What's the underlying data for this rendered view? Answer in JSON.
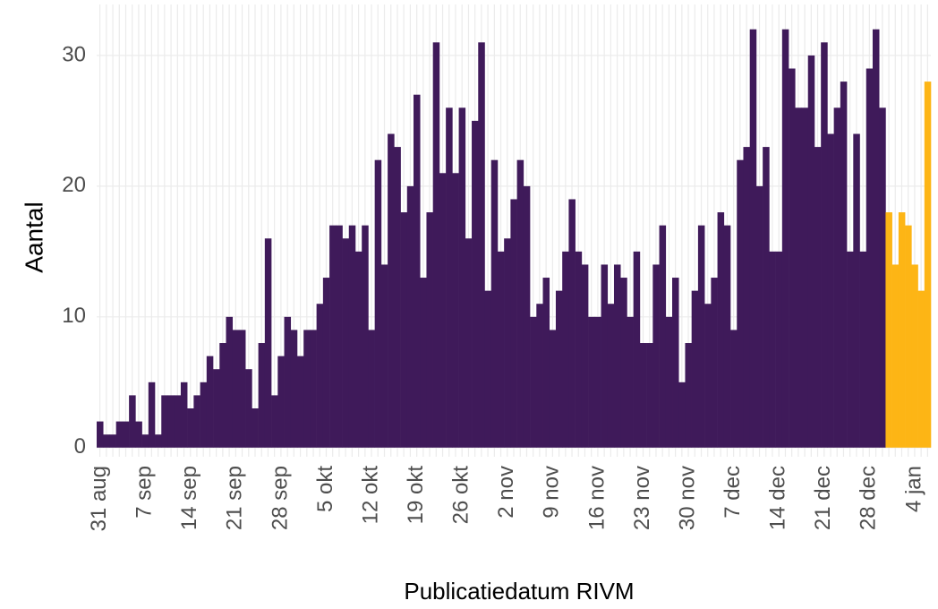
{
  "chart_data": {
    "type": "bar",
    "y_label": "Aantal",
    "x_label": "Publicatiedatum RIVM",
    "categories": [
      "31 aug",
      null,
      null,
      null,
      null,
      null,
      null,
      "7 sep",
      null,
      null,
      null,
      null,
      null,
      null,
      "14 sep",
      null,
      null,
      null,
      null,
      null,
      null,
      "21 sep",
      null,
      null,
      null,
      null,
      null,
      null,
      "28 sep",
      null,
      null,
      null,
      null,
      null,
      null,
      "5 okt",
      null,
      null,
      null,
      null,
      null,
      null,
      "12 okt",
      null,
      null,
      null,
      null,
      null,
      null,
      "19 okt",
      null,
      null,
      null,
      null,
      null,
      null,
      "26 okt",
      null,
      null,
      null,
      null,
      null,
      null,
      "2 nov",
      null,
      null,
      null,
      null,
      null,
      null,
      "9 nov",
      null,
      null,
      null,
      null,
      null,
      null,
      "16 nov",
      null,
      null,
      null,
      null,
      null,
      null,
      "23 nov",
      null,
      null,
      null,
      null,
      null,
      null,
      "30 nov",
      null,
      null,
      null,
      null,
      null,
      null,
      "7 dec",
      null,
      null,
      null,
      null,
      null,
      null,
      "14 dec",
      null,
      null,
      null,
      null,
      null,
      null,
      "21 dec",
      null,
      null,
      null,
      null,
      null,
      null,
      "28 dec",
      null,
      null,
      null,
      null,
      null,
      null,
      "4 jan",
      null,
      null
    ],
    "series": [
      {
        "color": "#3f1a5a",
        "values": [
          2,
          1,
          1,
          2,
          2,
          4,
          2,
          1,
          5,
          1,
          4,
          4,
          4,
          5,
          3,
          4,
          5,
          7,
          6,
          8,
          10,
          9,
          9,
          6,
          3,
          8,
          16,
          4,
          7,
          10,
          9,
          7,
          9,
          9,
          11,
          13,
          17,
          17,
          16,
          17,
          15,
          17,
          9,
          22,
          14,
          24,
          23,
          18,
          20,
          27,
          13,
          18,
          31,
          21,
          26,
          21,
          26,
          16,
          25,
          31,
          12,
          22,
          15,
          16,
          19,
          22,
          20,
          10,
          11,
          13,
          9,
          12,
          15,
          19,
          15,
          14,
          10,
          10,
          14,
          11,
          14,
          13,
          10,
          15,
          8,
          8,
          14,
          17,
          10,
          13,
          5,
          8,
          12,
          17,
          11,
          13,
          18,
          17,
          9,
          22,
          23,
          32,
          20,
          23,
          15,
          15,
          32,
          29,
          26,
          26,
          30,
          23,
          31,
          24,
          26,
          28,
          15,
          24,
          15,
          29,
          32,
          26,
          null,
          null,
          null,
          null,
          null,
          null,
          null
        ]
      },
      {
        "color": "#fdb515",
        "values": [
          null,
          null,
          null,
          null,
          null,
          null,
          null,
          null,
          null,
          null,
          null,
          null,
          null,
          null,
          null,
          null,
          null,
          null,
          null,
          null,
          null,
          null,
          null,
          null,
          null,
          null,
          null,
          null,
          null,
          null,
          null,
          null,
          null,
          null,
          null,
          null,
          null,
          null,
          null,
          null,
          null,
          null,
          null,
          null,
          null,
          null,
          null,
          null,
          null,
          null,
          null,
          null,
          null,
          null,
          null,
          null,
          null,
          null,
          null,
          null,
          null,
          null,
          null,
          null,
          null,
          null,
          null,
          null,
          null,
          null,
          null,
          null,
          null,
          null,
          null,
          null,
          null,
          null,
          null,
          null,
          null,
          null,
          null,
          null,
          null,
          null,
          null,
          null,
          null,
          null,
          null,
          null,
          null,
          null,
          null,
          null,
          null,
          null,
          null,
          null,
          null,
          null,
          null,
          null,
          null,
          null,
          null,
          null,
          null,
          null,
          null,
          null,
          null,
          null,
          null,
          null,
          null,
          null,
          null,
          null,
          null,
          null,
          18,
          14,
          18,
          17,
          14,
          12,
          28
        ]
      }
    ],
    "ylim": [
      -0.7,
      33.9
    ],
    "yticks": [
      0,
      10,
      20,
      30
    ],
    "grid": true
  }
}
